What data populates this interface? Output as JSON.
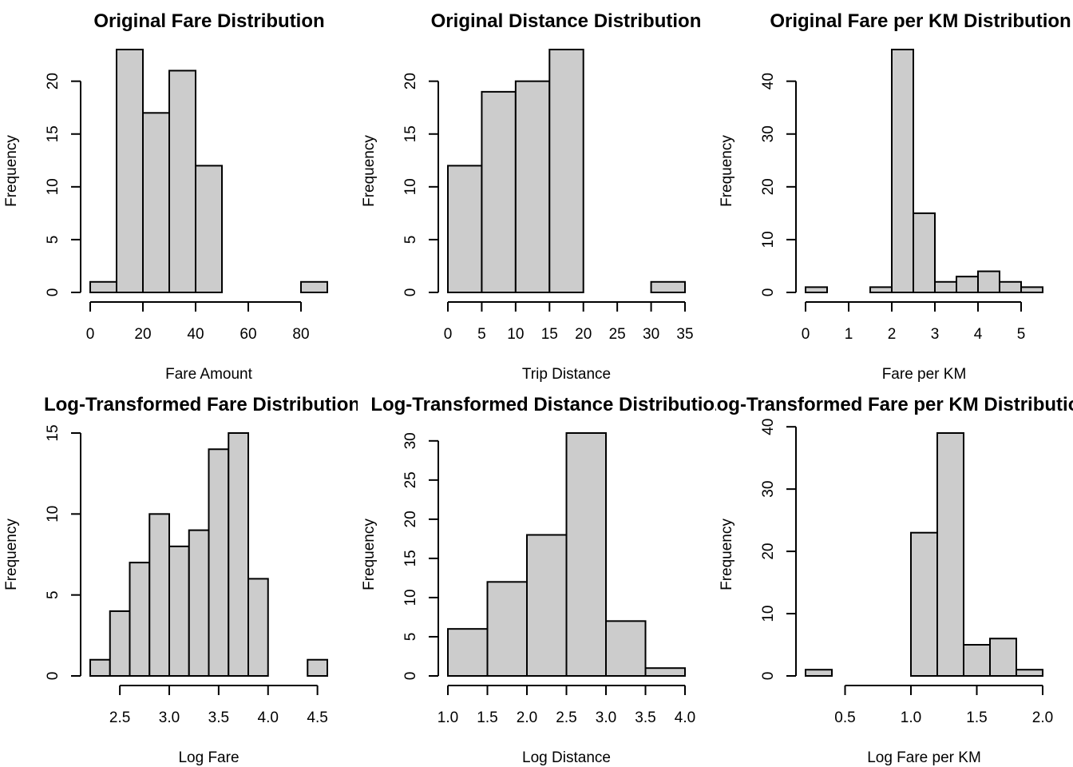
{
  "chart_data": [
    {
      "type": "histogram",
      "title": "Original Fare Distribution",
      "xlabel": "Fare Amount",
      "ylabel": "Frequency",
      "bins": [
        [
          0,
          10,
          1
        ],
        [
          10,
          20,
          23
        ],
        [
          20,
          30,
          17
        ],
        [
          30,
          40,
          21
        ],
        [
          40,
          50,
          12
        ],
        [
          50,
          60,
          0
        ],
        [
          60,
          70,
          0
        ],
        [
          70,
          80,
          0
        ],
        [
          80,
          90,
          1
        ]
      ],
      "xticks": [
        0,
        20,
        40,
        60,
        80
      ],
      "xtick_labels": [
        "0",
        "20",
        "40",
        "60",
        "80"
      ],
      "yticks": [
        0,
        5,
        10,
        15,
        20
      ],
      "ytick_labels": [
        "0",
        "5",
        "10",
        "15",
        "20"
      ],
      "xlim": [
        0,
        90
      ],
      "ylim": [
        0,
        23
      ]
    },
    {
      "type": "histogram",
      "title": "Original Distance Distribution",
      "xlabel": "Trip Distance",
      "ylabel": "Frequency",
      "bins": [
        [
          0,
          5,
          12
        ],
        [
          5,
          10,
          19
        ],
        [
          10,
          15,
          20
        ],
        [
          15,
          20,
          23
        ],
        [
          20,
          25,
          0
        ],
        [
          25,
          30,
          0
        ],
        [
          30,
          35,
          1
        ]
      ],
      "xticks": [
        0,
        5,
        10,
        15,
        20,
        25,
        30,
        35
      ],
      "xtick_labels": [
        "0",
        "5",
        "10",
        "15",
        "20",
        "25",
        "30",
        "35"
      ],
      "yticks": [
        0,
        5,
        10,
        15,
        20
      ],
      "ytick_labels": [
        "0",
        "5",
        "10",
        "15",
        "20"
      ],
      "xlim": [
        0,
        35
      ],
      "ylim": [
        0,
        23
      ]
    },
    {
      "type": "histogram",
      "title": "Original Fare per KM Distribution",
      "xlabel": "Fare per KM",
      "ylabel": "Frequency",
      "bins": [
        [
          0,
          0.5,
          1
        ],
        [
          0.5,
          1,
          0
        ],
        [
          1,
          1.5,
          0
        ],
        [
          1.5,
          2,
          1
        ],
        [
          2,
          2.5,
          46
        ],
        [
          2.5,
          3,
          15
        ],
        [
          3,
          3.5,
          2
        ],
        [
          3.5,
          4,
          3
        ],
        [
          4,
          4.5,
          4
        ],
        [
          4.5,
          5,
          2
        ],
        [
          5,
          5.5,
          1
        ]
      ],
      "xticks": [
        0,
        1,
        2,
        3,
        4,
        5
      ],
      "xtick_labels": [
        "0",
        "1",
        "2",
        "3",
        "4",
        "5"
      ],
      "yticks": [
        0,
        10,
        20,
        30,
        40
      ],
      "ytick_labels": [
        "0",
        "10",
        "20",
        "30",
        "40"
      ],
      "xlim": [
        0,
        5.5
      ],
      "ylim": [
        0,
        46
      ]
    },
    {
      "type": "histogram",
      "title": "Log-Transformed Fare Distribution",
      "xlabel": "Log Fare",
      "ylabel": "Frequency",
      "bins": [
        [
          2.2,
          2.4,
          1
        ],
        [
          2.4,
          2.6,
          4
        ],
        [
          2.6,
          2.8,
          7
        ],
        [
          2.8,
          3.0,
          10
        ],
        [
          3.0,
          3.2,
          8
        ],
        [
          3.2,
          3.4,
          9
        ],
        [
          3.4,
          3.6,
          14
        ],
        [
          3.6,
          3.8,
          15
        ],
        [
          3.8,
          4.0,
          6
        ],
        [
          4.0,
          4.2,
          0
        ],
        [
          4.2,
          4.4,
          0
        ],
        [
          4.4,
          4.6,
          1
        ]
      ],
      "xticks": [
        2.5,
        3.0,
        3.5,
        4.0,
        4.5
      ],
      "xtick_labels": [
        "2.5",
        "3.0",
        "3.5",
        "4.0",
        "4.5"
      ],
      "yticks": [
        0,
        5,
        10,
        15
      ],
      "ytick_labels": [
        "0",
        "5",
        "10",
        "15"
      ],
      "xlim": [
        2.2,
        4.6
      ],
      "ylim": [
        0,
        15
      ]
    },
    {
      "type": "histogram",
      "title": "Log-Transformed Distance Distribution",
      "xlabel": "Log Distance",
      "ylabel": "Frequency",
      "bins": [
        [
          1.0,
          1.5,
          6
        ],
        [
          1.5,
          2.0,
          12
        ],
        [
          2.0,
          2.5,
          18
        ],
        [
          2.5,
          3.0,
          31
        ],
        [
          3.0,
          3.5,
          7
        ],
        [
          3.5,
          4.0,
          1
        ]
      ],
      "xticks": [
        1.0,
        1.5,
        2.0,
        2.5,
        3.0,
        3.5,
        4.0
      ],
      "xtick_labels": [
        "1.0",
        "1.5",
        "2.0",
        "2.5",
        "3.0",
        "3.5",
        "4.0"
      ],
      "yticks": [
        0,
        5,
        10,
        15,
        20,
        25,
        30
      ],
      "ytick_labels": [
        "0",
        "5",
        "10",
        "15",
        "20",
        "25",
        "30"
      ],
      "xlim": [
        1.0,
        4.0
      ],
      "ylim": [
        0,
        31
      ]
    },
    {
      "type": "histogram",
      "title": "Log-Transformed Fare per KM Distribution",
      "xlabel": "Log Fare per KM",
      "ylabel": "Frequency",
      "bins": [
        [
          0.2,
          0.4,
          1
        ],
        [
          0.4,
          0.6,
          0
        ],
        [
          0.6,
          0.8,
          0
        ],
        [
          0.8,
          1.0,
          0
        ],
        [
          1.0,
          1.2,
          23
        ],
        [
          1.2,
          1.4,
          39
        ],
        [
          1.4,
          1.6,
          5
        ],
        [
          1.6,
          1.8,
          6
        ],
        [
          1.8,
          2.0,
          1
        ]
      ],
      "xticks": [
        0.5,
        1.0,
        1.5,
        2.0
      ],
      "xtick_labels": [
        "0.5",
        "1.0",
        "1.5",
        "2.0"
      ],
      "yticks": [
        0,
        10,
        20,
        30,
        40
      ],
      "ytick_labels": [
        "0",
        "10",
        "20",
        "30",
        "40"
      ],
      "xlim": [
        0.2,
        2.0
      ],
      "ylim": [
        0,
        39
      ]
    }
  ]
}
